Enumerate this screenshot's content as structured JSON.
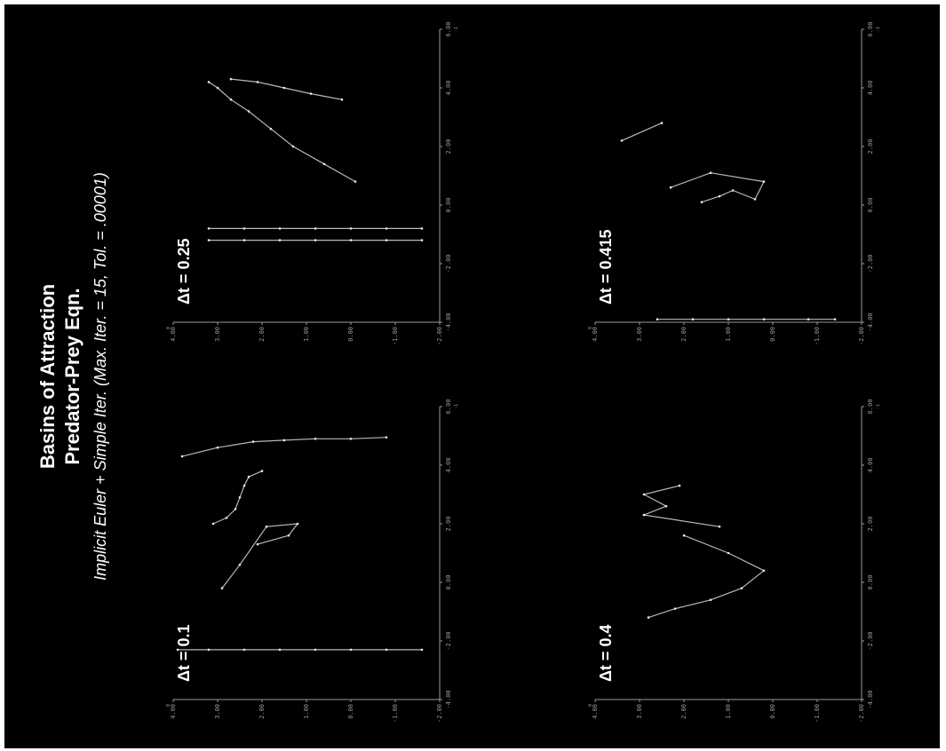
{
  "titles": {
    "line1": "Basins of Attraction",
    "line2": "Predator-Prey Eqn.",
    "line3": "Implicit Euler + Simple Iter. (Max. Iter. = 15, Tol. = .00001)"
  },
  "chart_data": [
    {
      "type": "scatter",
      "label": "Δt = 0.1",
      "xlim": [
        -4,
        6
      ],
      "ylim": [
        -2,
        4
      ],
      "x_ticks": [
        "-4.00",
        "-2.00",
        "0.00",
        "2.00",
        "4.00",
        "6.00"
      ],
      "y_ticks": [
        "-2.00",
        "-1.00",
        "0.00",
        "1.00",
        "2.00",
        "3.00",
        "4.00"
      ],
      "y_ticks_raw": [
        -2,
        -1,
        0,
        1,
        2,
        3,
        4
      ],
      "x_ticks_raw": [
        -4,
        -2,
        0,
        2,
        4,
        6
      ],
      "x_exp": "-1",
      "y_exp": "0",
      "series": [
        {
          "points": [
            [
              -2.3,
              -1.6
            ],
            [
              -2.3,
              -0.8
            ],
            [
              -2.3,
              0
            ],
            [
              -2.3,
              0.8
            ],
            [
              -2.3,
              1.6
            ],
            [
              -2.3,
              2.4
            ],
            [
              -2.3,
              3.2
            ],
            [
              -2.3,
              3.9
            ]
          ]
        },
        {
          "points": [
            [
              4.3,
              3.8
            ],
            [
              4.6,
              3.0
            ],
            [
              4.8,
              2.2
            ],
            [
              4.85,
              1.5
            ],
            [
              4.9,
              0.8
            ],
            [
              4.9,
              0
            ],
            [
              4.95,
              -0.8
            ]
          ]
        },
        {
          "points": [
            [
              2.0,
              3.1
            ],
            [
              2.2,
              2.8
            ],
            [
              2.5,
              2.6
            ],
            [
              2.9,
              2.5
            ],
            [
              3.3,
              2.4
            ],
            [
              3.6,
              2.3
            ],
            [
              3.8,
              2.0
            ]
          ]
        },
        {
          "points": [
            [
              1.3,
              2.1
            ],
            [
              1.6,
              1.4
            ],
            [
              2.0,
              1.2
            ],
            [
              1.9,
              1.9
            ],
            [
              0.6,
              2.5
            ],
            [
              -0.2,
              2.9
            ]
          ]
        }
      ]
    },
    {
      "type": "scatter",
      "label": "Δt = 0.25",
      "xlim": [
        -4,
        6
      ],
      "ylim": [
        -2,
        4
      ],
      "x_ticks": [
        "-4.00",
        "-2.00",
        "0.00",
        "2.00",
        "4.00",
        "6.00"
      ],
      "y_ticks": [
        "-2.00",
        "-1.00",
        "0.00",
        "1.00",
        "2.00",
        "3.00",
        "4.00"
      ],
      "y_ticks_raw": [
        -2,
        -1,
        0,
        1,
        2,
        3,
        4
      ],
      "x_ticks_raw": [
        -4,
        -2,
        0,
        2,
        4,
        6
      ],
      "x_exp": "-1",
      "y_exp": "0",
      "series": [
        {
          "points": [
            [
              -0.8,
              -1.6
            ],
            [
              -0.8,
              -0.8
            ],
            [
              -0.8,
              0
            ],
            [
              -0.8,
              0.8
            ],
            [
              -0.8,
              1.6
            ],
            [
              -0.8,
              2.4
            ],
            [
              -0.8,
              3.2
            ]
          ]
        },
        {
          "points": [
            [
              -1.2,
              -1.6
            ],
            [
              -1.2,
              -0.8
            ],
            [
              -1.2,
              0
            ],
            [
              -1.2,
              0.8
            ],
            [
              -1.2,
              1.6
            ],
            [
              -1.2,
              2.4
            ],
            [
              -1.2,
              3.2
            ]
          ]
        },
        {
          "points": [
            [
              0.8,
              -0.1
            ],
            [
              1.4,
              0.6
            ],
            [
              2.0,
              1.3
            ],
            [
              2.6,
              1.8
            ],
            [
              3.2,
              2.3
            ],
            [
              3.6,
              2.7
            ],
            [
              4.0,
              3.0
            ],
            [
              4.2,
              3.2
            ]
          ]
        },
        {
          "points": [
            [
              3.6,
              0.2
            ],
            [
              3.8,
              0.9
            ],
            [
              4.0,
              1.5
            ],
            [
              4.2,
              2.1
            ],
            [
              4.3,
              2.7
            ]
          ]
        }
      ]
    },
    {
      "type": "scatter",
      "label": "Δt = 0.4",
      "xlim": [
        -4,
        6
      ],
      "ylim": [
        -2,
        4
      ],
      "x_ticks": [
        "-4.00",
        "-2.00",
        "0.00",
        "2.00",
        "4.00",
        "6.00"
      ],
      "y_ticks": [
        "-2.00",
        "-1.00",
        "0.00",
        "1.00",
        "2.00",
        "3.00",
        "4.00"
      ],
      "y_ticks_raw": [
        -2,
        -1,
        0,
        1,
        2,
        3,
        4
      ],
      "x_ticks_raw": [
        -4,
        -2,
        0,
        2,
        4,
        6
      ],
      "x_exp": "-1",
      "y_exp": "0",
      "series": [
        {
          "points": [
            [
              -1.2,
              2.8
            ],
            [
              -0.9,
              2.2
            ],
            [
              -0.6,
              1.4
            ],
            [
              -0.2,
              0.7
            ],
            [
              0.4,
              0.2
            ],
            [
              1.0,
              1.0
            ],
            [
              1.6,
              2.0
            ]
          ]
        },
        {
          "points": [
            [
              1.9,
              1.2
            ],
            [
              2.3,
              2.9
            ],
            [
              2.6,
              2.4
            ],
            [
              3.0,
              2.9
            ],
            [
              3.3,
              2.1
            ]
          ]
        }
      ]
    },
    {
      "type": "scatter",
      "label": "Δt = 0.415",
      "xlim": [
        -4,
        6
      ],
      "ylim": [
        -2,
        4
      ],
      "x_ticks": [
        "-4.00",
        "-2.00",
        "0.00",
        "2.00",
        "4.00",
        "6.00"
      ],
      "y_ticks": [
        "-2.00",
        "-1.00",
        "0.00",
        "1.00",
        "2.00",
        "3.00",
        "4.00"
      ],
      "y_ticks_raw": [
        -2,
        -1,
        0,
        1,
        2,
        3,
        4
      ],
      "x_ticks_raw": [
        -4,
        -2,
        0,
        2,
        4,
        6
      ],
      "x_exp": "-1",
      "y_exp": "0",
      "series": [
        {
          "points": [
            [
              -3.9,
              2.6
            ],
            [
              -3.9,
              1.8
            ],
            [
              -3.9,
              1.0
            ],
            [
              -3.9,
              0.2
            ],
            [
              -3.9,
              -0.8
            ],
            [
              -3.9,
              -1.4
            ]
          ]
        },
        {
          "points": [
            [
              0.1,
              1.6
            ],
            [
              0.3,
              1.2
            ],
            [
              0.5,
              0.9
            ],
            [
              0.2,
              0.4
            ],
            [
              0.8,
              0.2
            ],
            [
              1.1,
              1.4
            ],
            [
              0.6,
              2.3
            ]
          ]
        },
        {
          "points": [
            [
              2.2,
              3.4
            ],
            [
              2.8,
              2.5
            ]
          ]
        }
      ]
    }
  ]
}
